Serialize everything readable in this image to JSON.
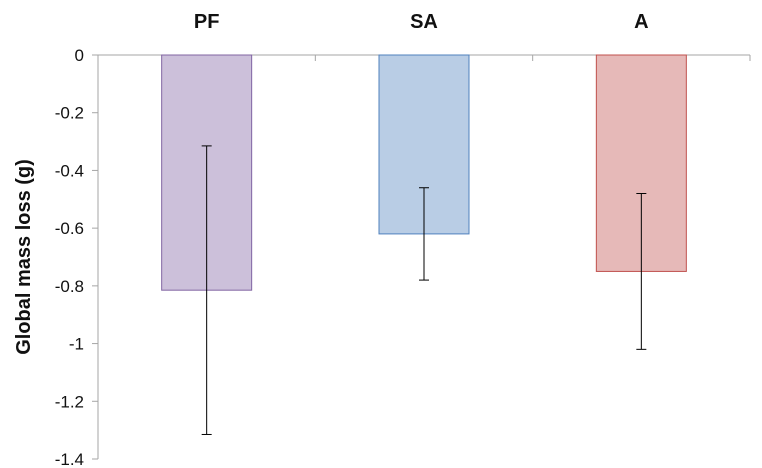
{
  "chart_data": {
    "type": "bar",
    "categories": [
      "PF",
      "SA",
      "A"
    ],
    "values": [
      -0.815,
      -0.62,
      -0.75
    ],
    "error": [
      0.5,
      0.16,
      0.27
    ],
    "ylabel": "Global mass loss (g)",
    "xlabel": "",
    "ylim": [
      -1.4,
      0
    ],
    "yticks": [
      0,
      -0.2,
      -0.4,
      -0.6,
      -0.8,
      -1,
      -1.2,
      -1.4
    ],
    "ytick_labels": [
      "0",
      "-0.2",
      "-0.4",
      "-0.6",
      "-0.8",
      "-1",
      "-1.2",
      "-1.4"
    ],
    "category_position": "top",
    "grid": false,
    "legend": "none",
    "colors": {
      "fills": [
        "#ccc0da",
        "#b9cde5",
        "#e6b9b8"
      ],
      "strokes": [
        "#8064a2",
        "#4f81bd",
        "#c0504d"
      ],
      "axis": "#a6a6a6",
      "error_bar": "#000000"
    }
  }
}
